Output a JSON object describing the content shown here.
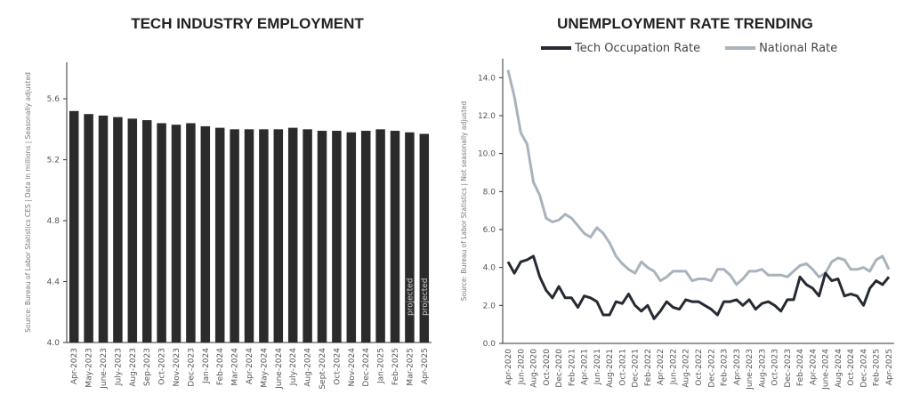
{
  "chart_data": [
    {
      "type": "bar",
      "title": "TECH INDUSTRY EMPLOYMENT",
      "y_label": "Source: Bureau of Labor Statistics CES | Data in millions | Seasonally adjusted",
      "categories": [
        "Apr-2023",
        "May-2023",
        "June-2023",
        "July-2023",
        "Aug-2023",
        "Sep-2023",
        "Oct-2023",
        "Nov-2023",
        "Dec-2023",
        "Jan-2024",
        "Feb-2024",
        "Mar-2024",
        "Apr-2024",
        "May-2024",
        "June-2024",
        "July-2024",
        "Aug-2024",
        "Sept-2024",
        "Oct-2024",
        "Nov-2024",
        "Dec-2024",
        "Jan-2025",
        "Feb-2025",
        "Mar-2025",
        "Apr-2025"
      ],
      "values": [
        5.52,
        5.5,
        5.49,
        5.48,
        5.47,
        5.46,
        5.44,
        5.43,
        5.44,
        5.42,
        5.41,
        5.4,
        5.4,
        5.4,
        5.4,
        5.41,
        5.4,
        5.39,
        5.39,
        5.38,
        5.39,
        5.4,
        5.39,
        5.38,
        5.37
      ],
      "color": "#2b2b2b",
      "annotations": [
        "projected",
        "projected"
      ],
      "ylim": [
        4.0,
        5.84
      ],
      "yticks": [
        {
          "value": 4.0,
          "label": "4.0"
        },
        {
          "value": 4.4,
          "label": "4.4"
        },
        {
          "value": 4.8,
          "label": "4.8"
        },
        {
          "value": 5.2,
          "label": "5.2"
        },
        {
          "value": 5.6,
          "label": "5.6"
        }
      ]
    },
    {
      "type": "line",
      "title": "UNEMPLOYMENT RATE TRENDING",
      "y_label": "Source: Bureau of Labor Statistics | Not seasonally adjusted",
      "categories": [
        "Apr-2020",
        null,
        "Jun-2020",
        null,
        "Aug-2020",
        null,
        "Oct-2020",
        null,
        "Dec-2020",
        null,
        "Feb-2021",
        null,
        "Apr-2021",
        null,
        "Jun-2021",
        null,
        "Aug-2021",
        null,
        "Oct-2021",
        null,
        "Dec-2021",
        null,
        "Feb-2022",
        null,
        "Apr-2022",
        null,
        "Jun-2022",
        null,
        "Aug-2022",
        null,
        "Oct-2022",
        null,
        "Dec-2022",
        null,
        "Feb-2023",
        null,
        "Apr-2023",
        null,
        "June-2023",
        null,
        "Aug-2023",
        null,
        "Oct-2023",
        null,
        "Dec-2023",
        null,
        "Feb-2024",
        null,
        "Apr-2024",
        null,
        "June-2024",
        null,
        "Aug-2024",
        null,
        "Oct-2024",
        null,
        "Dec-2024",
        null,
        "Feb-2025",
        null,
        "Apr-2025"
      ],
      "series": [
        {
          "name": "Tech Occupation Rate",
          "color": "#252a33",
          "values": [
            4.3,
            3.7,
            4.3,
            4.4,
            4.6,
            3.5,
            2.8,
            2.4,
            3.0,
            2.4,
            2.4,
            1.9,
            2.5,
            2.4,
            2.2,
            1.5,
            1.5,
            2.2,
            2.1,
            2.6,
            2.0,
            1.7,
            2.0,
            1.3,
            1.7,
            2.2,
            1.9,
            1.8,
            2.3,
            2.2,
            2.2,
            2.0,
            1.8,
            1.5,
            2.2,
            2.2,
            2.3,
            2.0,
            2.3,
            1.8,
            2.1,
            2.2,
            2.0,
            1.7,
            2.3,
            2.3,
            3.5,
            3.1,
            2.9,
            2.5,
            3.7,
            3.3,
            3.4,
            2.5,
            2.6,
            2.5,
            2.0,
            2.9,
            3.3,
            3.1,
            3.5
          ]
        },
        {
          "name": "National Rate",
          "color": "#a9b3bd",
          "values": [
            14.4,
            13.0,
            11.1,
            10.5,
            8.5,
            7.8,
            6.6,
            6.4,
            6.5,
            6.8,
            6.6,
            6.2,
            5.8,
            5.6,
            6.1,
            5.8,
            5.3,
            4.6,
            4.2,
            3.9,
            3.7,
            4.3,
            4.0,
            3.8,
            3.3,
            3.5,
            3.8,
            3.8,
            3.8,
            3.3,
            3.4,
            3.4,
            3.3,
            3.9,
            3.9,
            3.6,
            3.1,
            3.4,
            3.8,
            3.8,
            3.9,
            3.6,
            3.6,
            3.6,
            3.5,
            3.8,
            4.1,
            4.2,
            3.9,
            3.5,
            3.7,
            4.3,
            4.5,
            4.4,
            3.9,
            3.9,
            4.0,
            3.8,
            4.4,
            4.6,
            3.9
          ]
        }
      ],
      "ylim": [
        0,
        15
      ],
      "yticks": [
        {
          "value": 0,
          "label": "0.0"
        },
        {
          "value": 2,
          "label": "2.0"
        },
        {
          "value": 4,
          "label": "4.0"
        },
        {
          "value": 6,
          "label": "6.0"
        },
        {
          "value": 8,
          "label": "8.0"
        },
        {
          "value": 10,
          "label": "10.0"
        },
        {
          "value": 12,
          "label": "12.0"
        },
        {
          "value": 14,
          "label": "14.0"
        }
      ]
    }
  ]
}
